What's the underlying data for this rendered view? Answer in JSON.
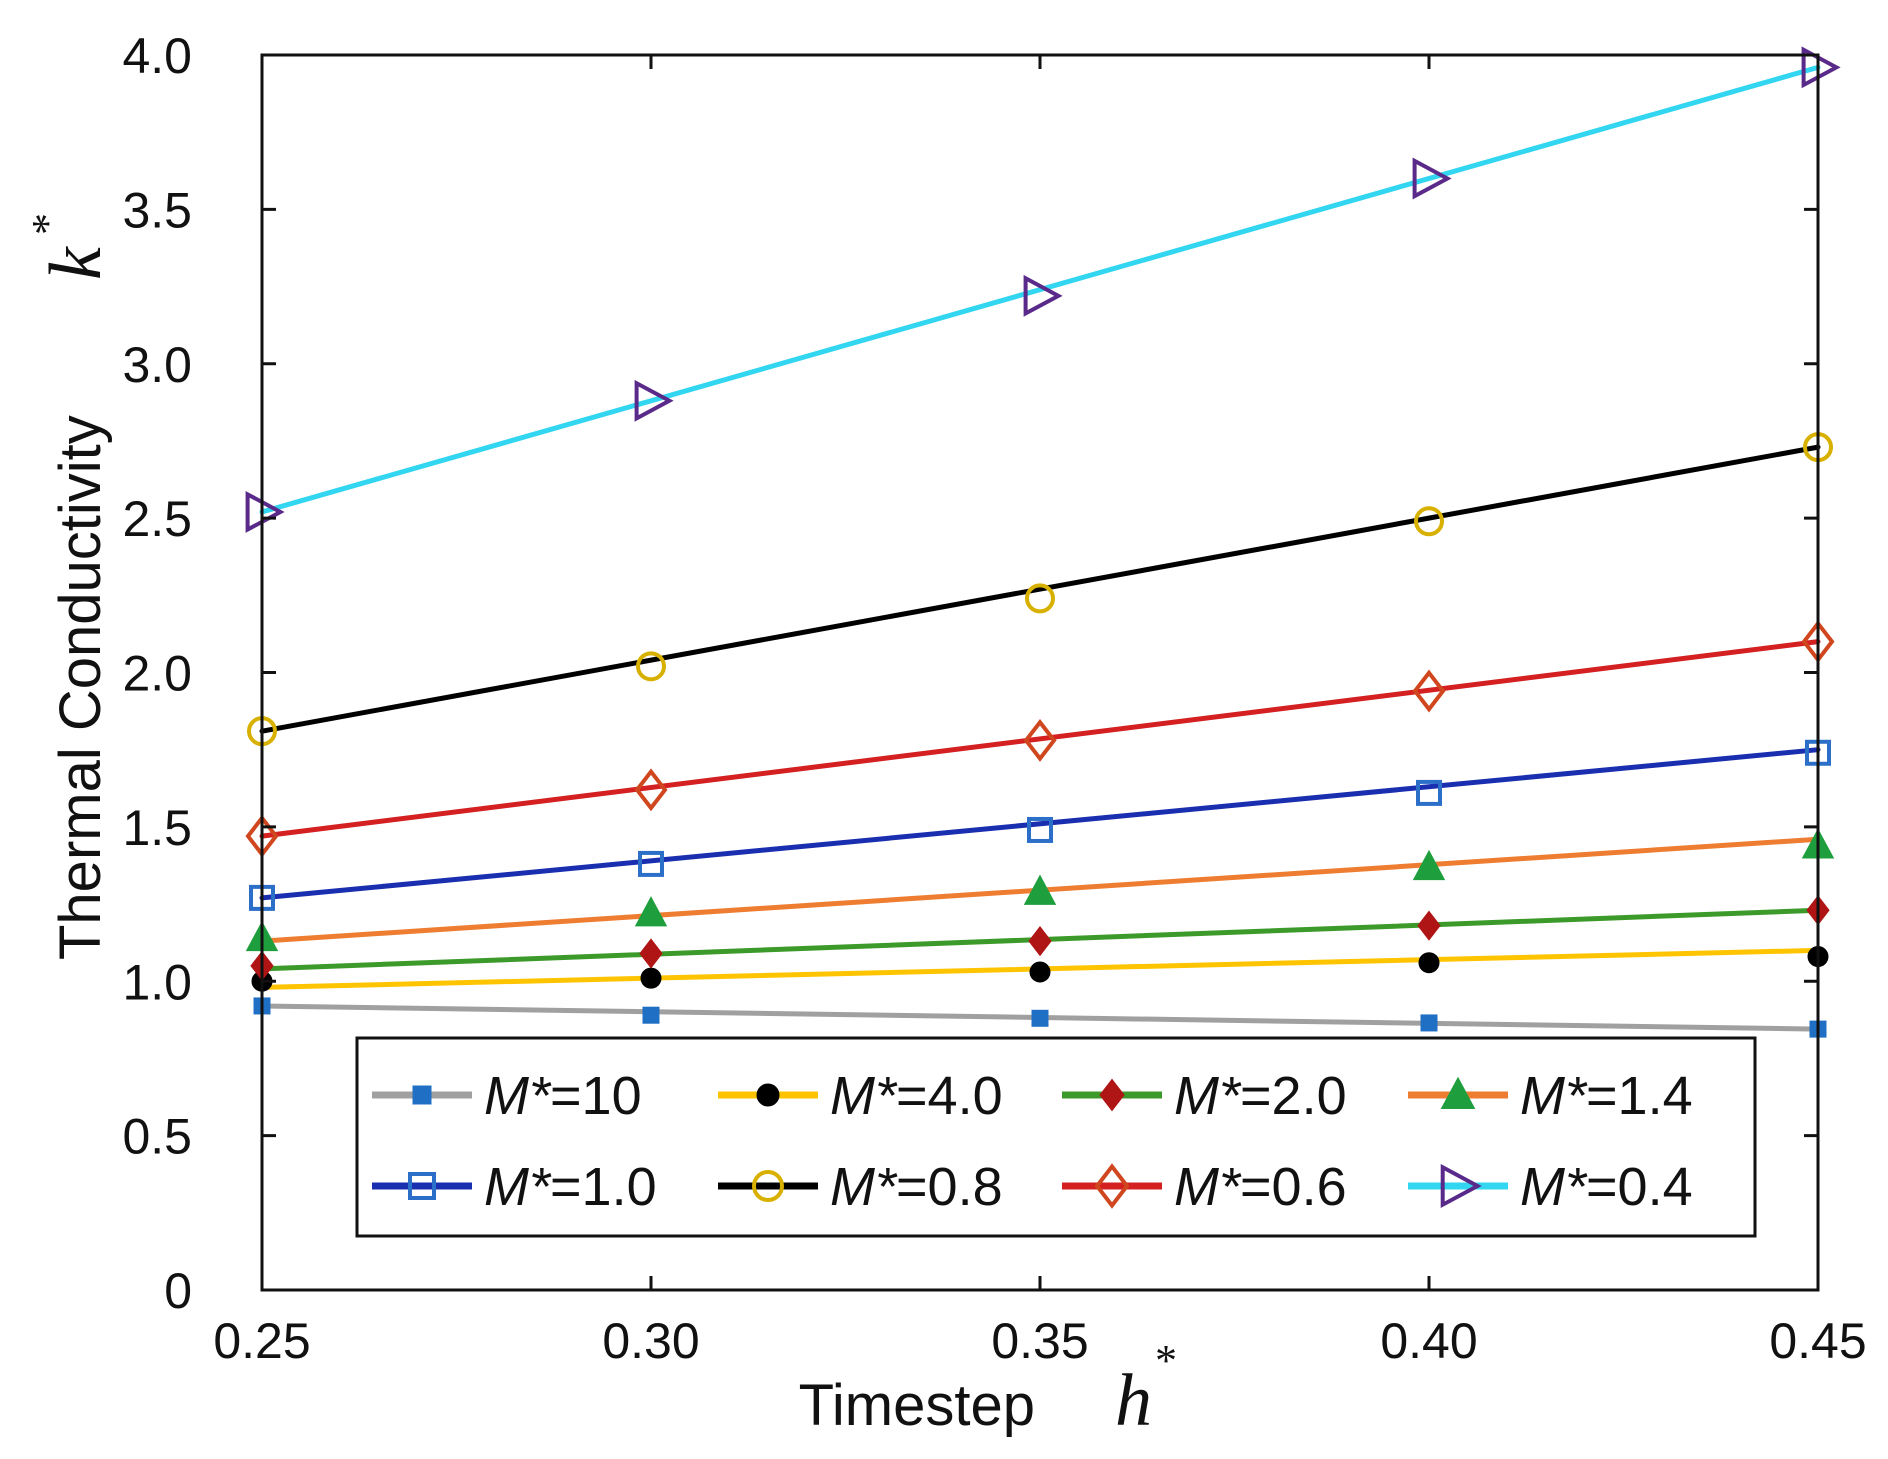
{
  "chart_data": {
    "type": "line",
    "x": [
      0.25,
      0.3,
      0.35,
      0.4,
      0.45
    ],
    "xlim": [
      0.25,
      0.45
    ],
    "ylim": [
      0,
      4.0
    ],
    "xticks": [
      "0.25",
      "0.30",
      "0.35",
      "0.40",
      "0.45"
    ],
    "yticks": [
      "0",
      "0.5",
      "1.0",
      "1.5",
      "2.0",
      "2.5",
      "3.0",
      "3.5",
      "4.0"
    ],
    "xlabel": "Timestep",
    "xlabel_symbol": "h",
    "ylabel": "Thermal Conductivity",
    "ylabel_symbol": "k",
    "label_superscript": "*",
    "grid": false,
    "legend_position": "bottom-center",
    "series": [
      {
        "name": "M*=10",
        "legend_name": "M*",
        "legend_value": "=10",
        "line_color": "#a0a0a0",
        "marker": "square-filled",
        "marker_color": "#1f6fc4",
        "fit": [
          0.92,
          0.845
        ],
        "values": [
          0.92,
          0.89,
          0.88,
          0.865,
          0.845
        ]
      },
      {
        "name": "M*=4.0",
        "legend_name": "M*",
        "legend_value": "=4.0",
        "line_color": "#ffc400",
        "marker": "circle-filled",
        "marker_color": "#000000",
        "fit": [
          0.98,
          1.1
        ],
        "values": [
          1.0,
          1.01,
          1.03,
          1.06,
          1.08
        ]
      },
      {
        "name": "M*=2.0",
        "legend_name": "M*",
        "legend_value": "=2.0",
        "line_color": "#3c9a2a",
        "marker": "diamond-filled",
        "marker_color": "#b01515",
        "fit": [
          1.04,
          1.23
        ],
        "values": [
          1.05,
          1.09,
          1.13,
          1.18,
          1.23
        ]
      },
      {
        "name": "M*=1.4",
        "legend_name": "M*",
        "legend_value": "=1.4",
        "line_color": "#ee7d31",
        "marker": "triangle-filled",
        "marker_color": "#1e9e3c",
        "fit": [
          1.13,
          1.46
        ],
        "values": [
          1.14,
          1.22,
          1.29,
          1.37,
          1.44
        ]
      },
      {
        "name": "M*=1.0",
        "legend_name": "M*",
        "legend_value": "=1.0",
        "line_color": "#1a2fb0",
        "marker": "square-open",
        "marker_color": "#2c6fc9",
        "fit": [
          1.27,
          1.75
        ],
        "values": [
          1.27,
          1.38,
          1.49,
          1.61,
          1.74
        ]
      },
      {
        "name": "M*=0.8",
        "legend_name": "M*",
        "legend_value": "=0.8",
        "line_color": "#000000",
        "marker": "circle-open",
        "marker_color": "#d8b000",
        "fit": [
          1.81,
          2.73
        ],
        "values": [
          1.81,
          2.02,
          2.24,
          2.49,
          2.73
        ]
      },
      {
        "name": "M*=0.6",
        "legend_name": "M*",
        "legend_value": "=0.6",
        "line_color": "#d42020",
        "marker": "diamond-open",
        "marker_color": "#d0461e",
        "fit": [
          1.47,
          2.1
        ],
        "values": [
          1.47,
          1.62,
          1.78,
          1.94,
          2.1
        ]
      },
      {
        "name": "M*=0.4",
        "legend_name": "M*",
        "legend_value": "=0.4",
        "line_color": "#33d6f0",
        "marker": "triangle-right-open",
        "marker_color": "#5a2a8a",
        "fit": [
          2.52,
          3.96
        ],
        "values": [
          2.52,
          2.88,
          3.22,
          3.6,
          3.96
        ]
      }
    ]
  }
}
